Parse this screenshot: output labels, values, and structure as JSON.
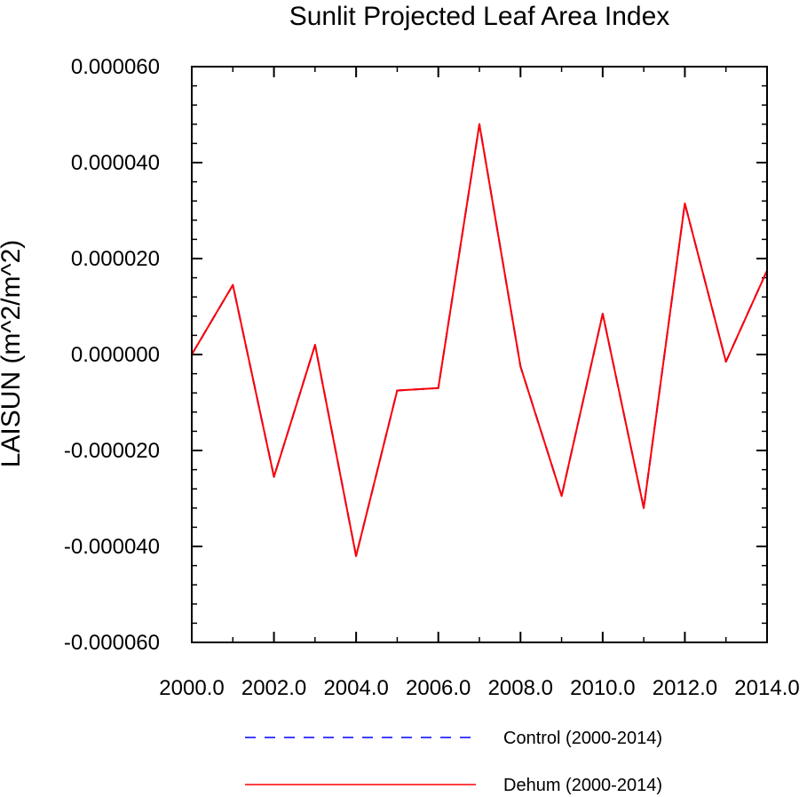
{
  "chart_data": {
    "type": "line",
    "title": "Sunlit Projected Leaf Area Index",
    "ylabel": "LAISUN  (m^2/m^2)",
    "xlabel": "",
    "xlim": [
      2000,
      2014
    ],
    "ylim": [
      -6e-05,
      6e-05
    ],
    "grid": false,
    "legend_position": "bottom-center",
    "x": [
      2000,
      2001,
      2002,
      2003,
      2004,
      2005,
      2006,
      2007,
      2008,
      2009,
      2010,
      2011,
      2012,
      2013,
      2014
    ],
    "x_tick_values": [
      2000,
      2002,
      2004,
      2006,
      2008,
      2010,
      2012,
      2014
    ],
    "x_tick_labels": [
      "2000.0",
      "2002.0",
      "2004.0",
      "2006.0",
      "2008.0",
      "2010.0",
      "2012.0",
      "2014.0"
    ],
    "y_tick_values": [
      6e-05,
      4e-05,
      2e-05,
      0,
      -2e-05,
      -4e-05,
      -6e-05
    ],
    "y_tick_labels": [
      "0.000060",
      "0.000040",
      "0.000020",
      "0.000000",
      "-0.000020",
      "-0.000040",
      "-0.000060"
    ],
    "series": [
      {
        "name": "Control (2000-2014)",
        "color": "#0000ff",
        "style": "dashed",
        "values": [
          0.0,
          1.45e-05,
          -2.55e-05,
          2e-06,
          -4.2e-05,
          -7.5e-06,
          -7e-06,
          4.8e-05,
          -2.5e-06,
          -2.95e-05,
          8.5e-06,
          -3.2e-05,
          3.15e-05,
          -1.5e-06,
          1.75e-05
        ]
      },
      {
        "name": "Dehum (2000-2014)",
        "color": "#ff0000",
        "style": "solid",
        "values": [
          0.0,
          1.45e-05,
          -2.55e-05,
          2e-06,
          -4.2e-05,
          -7.5e-06,
          -7e-06,
          4.8e-05,
          -2.5e-06,
          -2.95e-05,
          8.5e-06,
          -3.2e-05,
          3.15e-05,
          -1.5e-06,
          1.75e-05
        ]
      }
    ]
  }
}
